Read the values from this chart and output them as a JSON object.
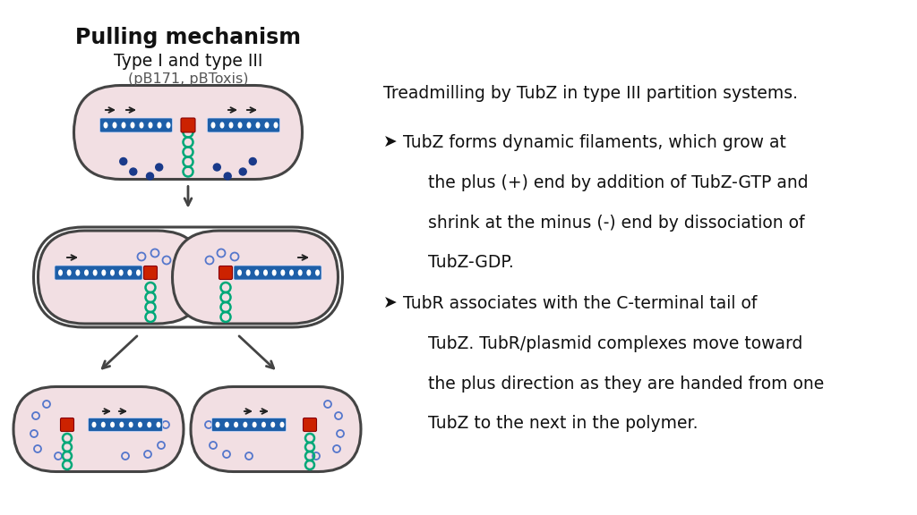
{
  "title": "Pulling mechanism",
  "subtitle1": "Type I and type III",
  "subtitle2": "(pB171, pBToxis)",
  "right_title": "Treadmilling by TubZ in type III partition systems.",
  "bullet1_sym": "➤",
  "bullet1_l1": "TubZ forms dynamic filaments, which grow at",
  "bullet1_l2": "the plus (+) end by addition of TubZ-GTP and",
  "bullet1_l3": "shrink at the minus (-) end by dissociation of",
  "bullet1_l4": "TubZ-GDP.",
  "bullet2_sym": "➤",
  "bullet2_l1": "TubR associates with the C-terminal tail of",
  "bullet2_l2": "TubZ. TubR/plasmid complexes move toward",
  "bullet2_l3": "the plus direction as they are handed from one",
  "bullet2_l4": "TubZ to the next in the polymer.",
  "bg_color": "#ffffff",
  "cell_fill": "#f2dfe3",
  "cell_edge": "#444444",
  "filament_color": "#1e5fa8",
  "plasmid_color": "#00a878",
  "red_color": "#cc2200",
  "dot_color": "#1a3a8a",
  "dot_open_color": "#5577cc"
}
